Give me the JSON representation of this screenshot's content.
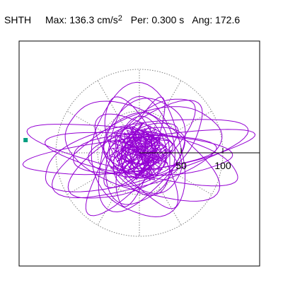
{
  "header": {
    "station": "SHTH",
    "max_label": "Max:",
    "max_value": "136.3",
    "max_unit": "cm/s",
    "max_unit_exp": "2",
    "per_label": "Per:",
    "per_value": "0.300 s",
    "ang_label": "Ang:",
    "ang_value": "172.6"
  },
  "chart_data": {
    "type": "scatter",
    "title": "SHTH Max: 136.3 cm/s^2 Per: 0.300 s Ang: 172.6",
    "polar_rings": [
      0,
      50,
      100
    ],
    "radial_tick_labels": [
      "50",
      "100"
    ],
    "spoke_angles_deg": [
      0,
      30,
      60,
      90,
      120,
      150,
      180,
      210,
      240,
      270,
      300,
      330
    ],
    "max_amplitude": 136.3,
    "unit": "cm/s^2",
    "period_s": 0.3,
    "angle_deg": 172.6,
    "orbit_color": "#9400D3",
    "grid_color": "#808080",
    "marker_color": "#009E80",
    "marker_value": {
      "r": 136.3,
      "angle_deg": 180
    },
    "orbits": [
      {
        "a": 137,
        "b": 20,
        "rot": 7.4
      },
      {
        "a": 128,
        "b": 26,
        "rot": 168
      },
      {
        "a": 124,
        "b": 34,
        "rot": 13
      },
      {
        "a": 110,
        "b": 24,
        "rot": 176
      },
      {
        "a": 105,
        "b": 42,
        "rot": 20
      },
      {
        "a": 98,
        "b": 46,
        "rot": 155
      },
      {
        "a": 92,
        "b": 36,
        "rot": 33
      },
      {
        "a": 90,
        "b": 30,
        "rot": 228
      },
      {
        "a": 86,
        "b": 22,
        "rot": 4
      },
      {
        "a": 80,
        "b": 54,
        "rot": 100
      },
      {
        "a": 74,
        "b": 26,
        "rot": 120
      },
      {
        "a": 72,
        "b": 44,
        "rot": 62
      },
      {
        "a": 68,
        "b": 18,
        "rot": 250
      },
      {
        "a": 64,
        "b": 40,
        "rot": 82
      },
      {
        "a": 60,
        "b": 34,
        "rot": 140
      },
      {
        "a": 58,
        "b": 28,
        "rot": 190
      },
      {
        "a": 54,
        "b": 22,
        "rot": 40
      },
      {
        "a": 50,
        "b": 38,
        "rot": 110
      },
      {
        "a": 46,
        "b": 24,
        "rot": 160
      },
      {
        "a": 42,
        "b": 30,
        "rot": 75
      },
      {
        "a": 38,
        "b": 20,
        "rot": 10
      },
      {
        "a": 34,
        "b": 26,
        "rot": 135
      },
      {
        "a": 30,
        "b": 18,
        "rot": 55
      },
      {
        "a": 26,
        "b": 20,
        "rot": 95
      },
      {
        "a": 22,
        "b": 14,
        "rot": 170
      },
      {
        "a": 18,
        "b": 12,
        "rot": 30
      }
    ],
    "noise_points": [
      [
        12,
        -8
      ],
      [
        -18,
        14
      ],
      [
        25,
        20
      ],
      [
        -30,
        -12
      ],
      [
        8,
        28
      ],
      [
        -22,
        -26
      ],
      [
        34,
        -4
      ],
      [
        -10,
        34
      ],
      [
        18,
        -30
      ],
      [
        -36,
        6
      ],
      [
        28,
        10
      ],
      [
        -6,
        -34
      ],
      [
        40,
        16
      ],
      [
        -26,
        22
      ],
      [
        14,
        -18
      ],
      [
        -40,
        -4
      ],
      [
        22,
        32
      ],
      [
        -14,
        -20
      ],
      [
        30,
        -22
      ],
      [
        -34,
        26
      ],
      [
        6,
        40
      ],
      [
        -20,
        8
      ],
      [
        38,
        -14
      ],
      [
        -8,
        18
      ],
      [
        16,
        24
      ],
      [
        -28,
        -30
      ],
      [
        44,
        4
      ],
      [
        -12,
        -40
      ],
      [
        24,
        -10
      ],
      [
        -42,
        16
      ],
      [
        10,
        12
      ],
      [
        -4,
        -16
      ],
      [
        32,
        26
      ],
      [
        -24,
        -6
      ],
      [
        4,
        -26
      ],
      [
        -16,
        30
      ],
      [
        36,
        8
      ],
      [
        -38,
        -20
      ],
      [
        20,
        -36
      ],
      [
        -2,
        24
      ]
    ]
  }
}
